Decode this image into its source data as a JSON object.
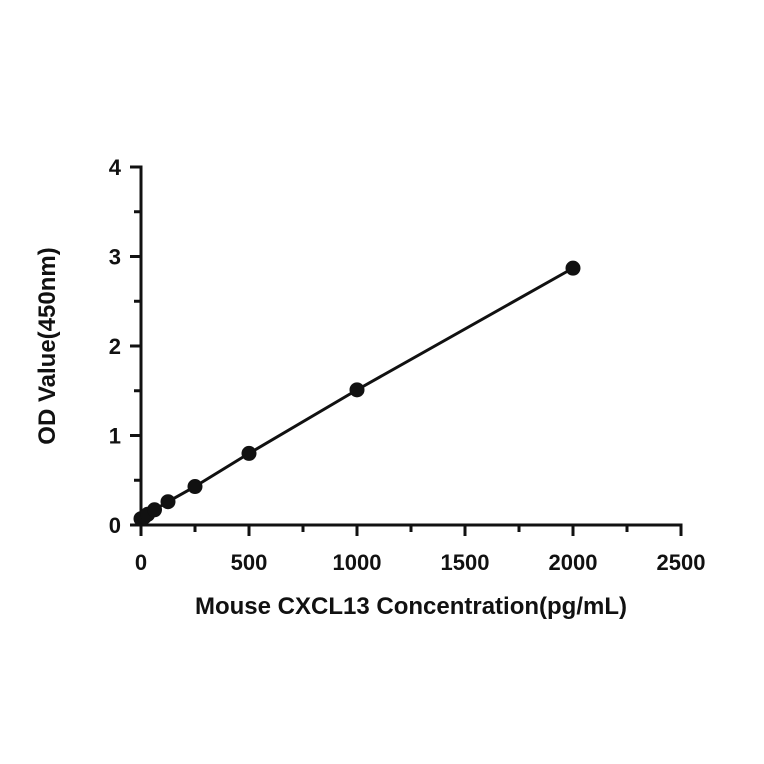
{
  "chart_data": {
    "type": "scatter",
    "title": "",
    "xlabel": "Mouse CXCL13 Concentration(pg/mL)",
    "ylabel": "OD Value(450nm)",
    "xlim": [
      0,
      2500
    ],
    "ylim": [
      0,
      4
    ],
    "x_ticks": [
      0,
      500,
      1000,
      1500,
      2000,
      2500
    ],
    "y_ticks": [
      0,
      1,
      2,
      3,
      4
    ],
    "x_tick_labels": [
      "0",
      "500",
      "1000",
      "1500",
      "2000",
      "2500"
    ],
    "y_tick_labels": [
      "0",
      "1",
      "2",
      "3",
      "4"
    ],
    "x_minor_ticks": [
      250,
      750,
      1250,
      1750,
      2250
    ],
    "y_minor_ticks": [
      0.5,
      1.5,
      2.5,
      3.5
    ],
    "grid": false,
    "fit_line": true,
    "series": [
      {
        "x": [
          0,
          15.6,
          31.25,
          62.5,
          125,
          250,
          500,
          1000,
          2000
        ],
        "y": [
          0.07,
          0.09,
          0.12,
          0.17,
          0.26,
          0.43,
          0.8,
          1.51,
          2.87
        ]
      }
    ],
    "colors": {
      "marker": "#111111",
      "line": "#111111",
      "axis": "#111111"
    }
  }
}
